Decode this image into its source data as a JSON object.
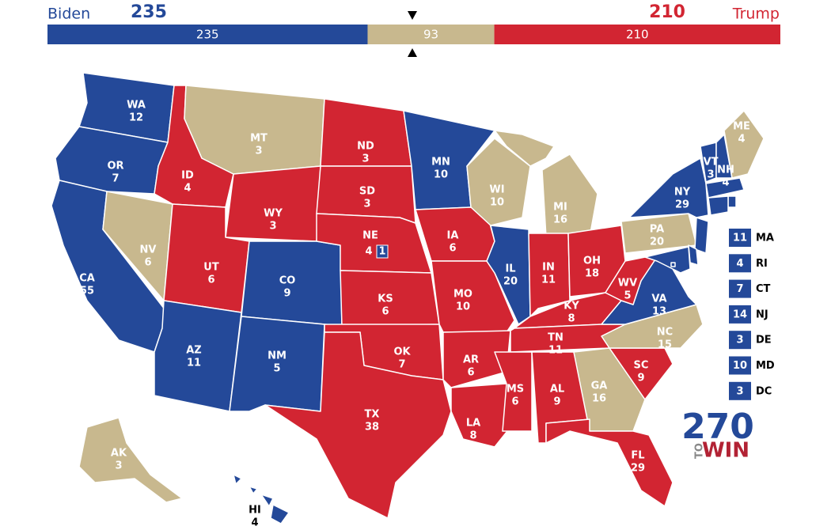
{
  "header": {
    "left_name": "Biden",
    "right_name": "Trump"
  },
  "colors": {
    "D": "#244999",
    "R": "#d22532",
    "T": "#c8b88e"
  },
  "bar": [
    {
      "value": 235,
      "party": "D"
    },
    {
      "value": 93,
      "party": "T"
    },
    {
      "value": 210,
      "party": "R"
    }
  ],
  "states": [
    {
      "abbr": "WA",
      "ev": 12,
      "party": "D"
    },
    {
      "abbr": "OR",
      "ev": 7,
      "party": "D"
    },
    {
      "abbr": "CA",
      "ev": 55,
      "party": "D"
    },
    {
      "abbr": "ID",
      "ev": 4,
      "party": "R"
    },
    {
      "abbr": "NV",
      "ev": 6,
      "party": "T"
    },
    {
      "abbr": "MT",
      "ev": 3,
      "party": "T"
    },
    {
      "abbr": "WY",
      "ev": 3,
      "party": "R"
    },
    {
      "abbr": "UT",
      "ev": 6,
      "party": "R"
    },
    {
      "abbr": "CO",
      "ev": 9,
      "party": "D"
    },
    {
      "abbr": "AZ",
      "ev": 11,
      "party": "D"
    },
    {
      "abbr": "NM",
      "ev": 5,
      "party": "D"
    },
    {
      "abbr": "ND",
      "ev": 3,
      "party": "R"
    },
    {
      "abbr": "SD",
      "ev": 3,
      "party": "R"
    },
    {
      "abbr": "NE",
      "ev": 4,
      "party": "R",
      "district": 1,
      "district_party": "D"
    },
    {
      "abbr": "KS",
      "ev": 6,
      "party": "R"
    },
    {
      "abbr": "OK",
      "ev": 7,
      "party": "R"
    },
    {
      "abbr": "TX",
      "ev": 38,
      "party": "R"
    },
    {
      "abbr": "MN",
      "ev": 10,
      "party": "D"
    },
    {
      "abbr": "IA",
      "ev": 6,
      "party": "R"
    },
    {
      "abbr": "MO",
      "ev": 10,
      "party": "R"
    },
    {
      "abbr": "AR",
      "ev": 6,
      "party": "R"
    },
    {
      "abbr": "LA",
      "ev": 8,
      "party": "R"
    },
    {
      "abbr": "WI",
      "ev": 10,
      "party": "T"
    },
    {
      "abbr": "IL",
      "ev": 20,
      "party": "D"
    },
    {
      "abbr": "MI",
      "ev": 16,
      "party": "T"
    },
    {
      "abbr": "IN",
      "ev": 11,
      "party": "R"
    },
    {
      "abbr": "OH",
      "ev": 18,
      "party": "R"
    },
    {
      "abbr": "KY",
      "ev": 8,
      "party": "R"
    },
    {
      "abbr": "TN",
      "ev": 11,
      "party": "R"
    },
    {
      "abbr": "MS",
      "ev": 6,
      "party": "R"
    },
    {
      "abbr": "AL",
      "ev": 9,
      "party": "R"
    },
    {
      "abbr": "GA",
      "ev": 16,
      "party": "T"
    },
    {
      "abbr": "FL",
      "ev": 29,
      "party": "R"
    },
    {
      "abbr": "SC",
      "ev": 9,
      "party": "R"
    },
    {
      "abbr": "NC",
      "ev": 15,
      "party": "T"
    },
    {
      "abbr": "VA",
      "ev": 13,
      "party": "D"
    },
    {
      "abbr": "WV",
      "ev": 5,
      "party": "R"
    },
    {
      "abbr": "PA",
      "ev": 20,
      "party": "T"
    },
    {
      "abbr": "NY",
      "ev": 29,
      "party": "D"
    },
    {
      "abbr": "VT",
      "ev": 3,
      "party": "D"
    },
    {
      "abbr": "NH",
      "ev": 4,
      "party": "D"
    },
    {
      "abbr": "ME",
      "ev": 4,
      "party": "T"
    },
    {
      "abbr": "AK",
      "ev": 3,
      "party": "T"
    },
    {
      "abbr": "HI",
      "ev": 4,
      "party": "D"
    }
  ],
  "small_states": [
    {
      "abbr": "MA",
      "ev": 11,
      "party": "D"
    },
    {
      "abbr": "RI",
      "ev": 4,
      "party": "D"
    },
    {
      "abbr": "CT",
      "ev": 7,
      "party": "D"
    },
    {
      "abbr": "NJ",
      "ev": 14,
      "party": "D"
    },
    {
      "abbr": "DE",
      "ev": 3,
      "party": "D"
    },
    {
      "abbr": "MD",
      "ev": 10,
      "party": "D"
    },
    {
      "abbr": "DC",
      "ev": 3,
      "party": "D"
    }
  ],
  "logo": {
    "number": "270",
    "to": "TO",
    "win": "WIN"
  }
}
